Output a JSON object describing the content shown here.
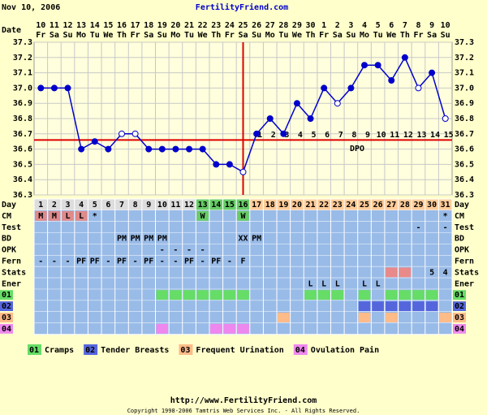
{
  "header": {
    "date": "Nov 10, 2006",
    "site": "FertilityFriend.com"
  },
  "chart_data": {
    "type": "line",
    "date_label": "Date",
    "categories": [
      "10",
      "11",
      "12",
      "13",
      "14",
      "15",
      "16",
      "17",
      "18",
      "19",
      "20",
      "21",
      "22",
      "23",
      "24",
      "25",
      "26",
      "27",
      "28",
      "29",
      "30",
      "1",
      "2",
      "3",
      "4",
      "5",
      "6",
      "7",
      "8",
      "9",
      "10"
    ],
    "weekdays": [
      "Fr",
      "Sa",
      "Su",
      "Mo",
      "Tu",
      "We",
      "Th",
      "Fr",
      "Sa",
      "Su",
      "Mo",
      "Tu",
      "We",
      "Th",
      "Fr",
      "Sa",
      "Su",
      "Mo",
      "Tu",
      "We",
      "Th",
      "Fr",
      "Sa",
      "Su",
      "Mo",
      "Tu",
      "We",
      "Th",
      "Fr",
      "Sa",
      "Su"
    ],
    "series": [
      {
        "color": "#0000cc",
        "values": [
          37.0,
          37.0,
          37.0,
          36.6,
          36.65,
          36.6,
          36.7,
          36.7,
          36.6,
          36.6,
          36.6,
          36.6,
          36.6,
          36.5,
          36.5,
          36.45,
          36.7,
          36.8,
          36.7,
          36.9,
          36.8,
          37.0,
          36.9,
          37.0,
          37.15,
          37.15,
          37.05,
          37.2,
          37.0,
          37.1,
          36.8
        ],
        "markers": [
          "filled",
          "filled",
          "filled",
          "filled",
          "filled",
          "filled",
          "open",
          "open",
          "filled",
          "filled",
          "filled",
          "filled",
          "filled",
          "filled",
          "filled",
          "open",
          "filled",
          "filled",
          "filled",
          "filled",
          "filled",
          "filled",
          "open",
          "filled",
          "filled",
          "filled",
          "filled",
          "filled",
          "open",
          "filled",
          "open"
        ]
      }
    ],
    "ylim": [
      36.3,
      37.3
    ],
    "yticks": [
      36.3,
      36.4,
      36.5,
      36.6,
      36.7,
      36.8,
      36.9,
      {
        "value": 37,
        "label": "37.0"
      },
      37.1,
      37.2,
      37.3
    ],
    "grid": true,
    "coverline": 36.66,
    "coverline_color": "#dd0000",
    "ovulation_day": 16,
    "dpo_label": "DPO",
    "dpo": [
      null,
      null,
      null,
      null,
      null,
      null,
      null,
      null,
      null,
      null,
      null,
      null,
      null,
      null,
      null,
      null,
      1,
      2,
      3,
      4,
      5,
      6,
      7,
      8,
      9,
      10,
      11,
      12,
      13,
      14,
      15
    ]
  },
  "day_row": {
    "label": "Day",
    "days": [
      1,
      2,
      3,
      4,
      5,
      6,
      7,
      8,
      9,
      10,
      11,
      12,
      13,
      14,
      15,
      16,
      17,
      18,
      19,
      20,
      21,
      22,
      23,
      24,
      25,
      26,
      27,
      28,
      29,
      30,
      31
    ],
    "fills": [
      "#dddddd",
      "#dddddd",
      "#dddddd",
      "#dddddd",
      "#dddddd",
      "#dddddd",
      "#dddddd",
      "#dddddd",
      "#dddddd",
      "#dddddd",
      "#dddddd",
      "#dddddd",
      "#66cc66",
      "#66cc66",
      "#66cc66",
      "#66cc66",
      "#ffcc99",
      "#ffcc99",
      "#ffcc99",
      "#ffcc99",
      "#ffcc99",
      "#ffcc99",
      "#ffcc99",
      "#ffcc99",
      "#ffcc99",
      "#ffcc99",
      "#ffcc99",
      "#ffcc99",
      "#ffcc99",
      "#ffcc99",
      "#ffcc99"
    ]
  },
  "rows": [
    {
      "label": "CM",
      "cells": {
        "1": "M",
        "2": "M",
        "3": "L",
        "4": "L",
        "5": "*",
        "13": "W",
        "16": "W",
        "31": "*"
      },
      "fills": {
        "1": "#e08a8a",
        "2": "#e08a8a",
        "3": "#e08a8a",
        "4": "#e08a8a",
        "13": "#66cc66",
        "16": "#66cc66"
      }
    },
    {
      "label": "Test",
      "cells": {
        "29": "-",
        "31": "-"
      }
    },
    {
      "label": "BD",
      "cells": {
        "7": "PM",
        "8": "PM",
        "9": "PM",
        "10": "PM",
        "16": "XX",
        "17": "PM"
      }
    },
    {
      "label": "OPK",
      "cells": {
        "10": "-",
        "11": "-",
        "12": "-",
        "13": "-"
      }
    },
    {
      "label": "Fern",
      "cells": {
        "1": "-",
        "2": "-",
        "3": "-",
        "4": "PF",
        "5": "PF",
        "6": "-",
        "7": "PF",
        "8": "-",
        "9": "PF",
        "10": "-",
        "11": "-",
        "12": "PF",
        "13": "-",
        "14": "PF",
        "15": "-",
        "16": "F"
      }
    },
    {
      "label": "Stats",
      "cells": {
        "30": 5,
        "31": 4
      },
      "fills": {
        "27": "#e88a8a",
        "28": "#e88a8a"
      }
    },
    {
      "label": "Ener",
      "cells": {
        "21": "L",
        "22": "L",
        "23": "L",
        "25": "L",
        "26": "L"
      }
    },
    {
      "label": "01",
      "label_color": "#66dd66",
      "fills": {
        "10": "#66dd66",
        "11": "#66dd66",
        "12": "#66dd66",
        "13": "#66dd66",
        "14": "#66dd66",
        "15": "#66dd66",
        "16": "#66dd66",
        "21": "#66dd66",
        "22": "#66dd66",
        "23": "#66dd66",
        "25": "#66dd66",
        "27": "#66dd66",
        "28": "#66dd66",
        "29": "#66dd66",
        "30": "#66dd66"
      }
    },
    {
      "label": "02",
      "label_color": "#5566dd",
      "fills": {
        "25": "#5566dd",
        "26": "#5566dd",
        "27": "#5566dd",
        "28": "#5566dd",
        "29": "#5566dd",
        "30": "#5566dd"
      }
    },
    {
      "label": "03",
      "label_color": "#ffbb88",
      "fills": {
        "19": "#ffbb88",
        "25": "#ffbb88",
        "27": "#ffbb88",
        "31": "#ffbb88"
      }
    },
    {
      "label": "04",
      "label_color": "#ee88ee",
      "fills": {
        "10": "#ee88ee",
        "14": "#ee88ee",
        "15": "#ee88ee",
        "16": "#ee88ee"
      }
    }
  ],
  "legend": [
    {
      "code": "01",
      "label": "Cramps",
      "color": "#66dd66"
    },
    {
      "code": "02",
      "label": "Tender Breasts",
      "color": "#5566dd"
    },
    {
      "code": "03",
      "label": "Frequent Urination",
      "color": "#ffbb88"
    },
    {
      "code": "04",
      "label": "Ovulation Pain",
      "color": "#ee88ee"
    }
  ],
  "footer": {
    "url": "http://www.FertilityFriend.com",
    "copyright": "Copyright 1998-2006 Tamtris Web Services Inc. - All Rights Reserved."
  }
}
